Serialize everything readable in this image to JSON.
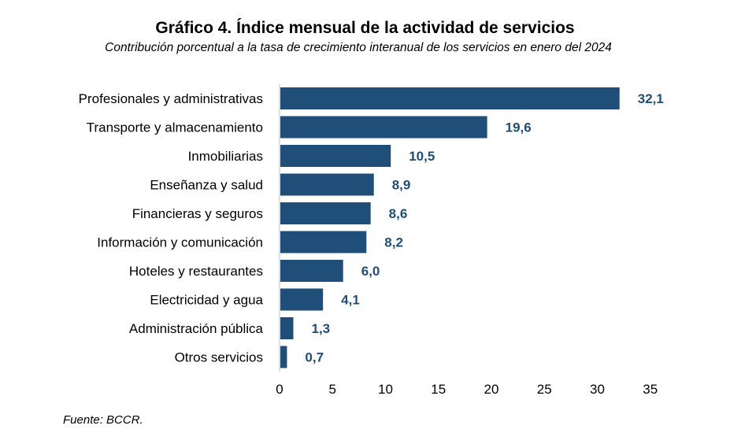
{
  "chart_data": {
    "type": "bar",
    "orientation": "horizontal",
    "title": "Gráfico 4. Índice mensual de la actividad de servicios",
    "subtitle": "Contribución porcentual a la tasa de crecimiento interanual de los servicios en enero del 2024",
    "categories": [
      "Profesionales y administrativas",
      "Transporte y almacenamiento",
      "Inmobiliarias",
      "Enseñanza y salud",
      "Financieras y seguros",
      "Información y comunicación",
      "Hoteles y restaurantes",
      "Electricidad y agua",
      "Administración pública",
      "Otros servicios"
    ],
    "values": [
      32.1,
      19.6,
      10.5,
      8.9,
      8.6,
      8.2,
      6.0,
      4.1,
      1.3,
      0.7
    ],
    "value_labels": [
      "32,1",
      "19,6",
      "10,5",
      "8,9",
      "8,6",
      "8,2",
      "6,0",
      "4,1",
      "1,3",
      "0,7"
    ],
    "xlim": [
      0,
      35
    ],
    "xticks": [
      0,
      5,
      10,
      15,
      20,
      25,
      30,
      35
    ],
    "xlabel": "",
    "ylabel": "",
    "grid": false,
    "legend": "none",
    "colors": {
      "bar": "#1f4e79",
      "value_label": "#1f4e79",
      "axis": "#bfbfbf",
      "text": "#000000"
    }
  },
  "source": "Fuente: BCCR."
}
